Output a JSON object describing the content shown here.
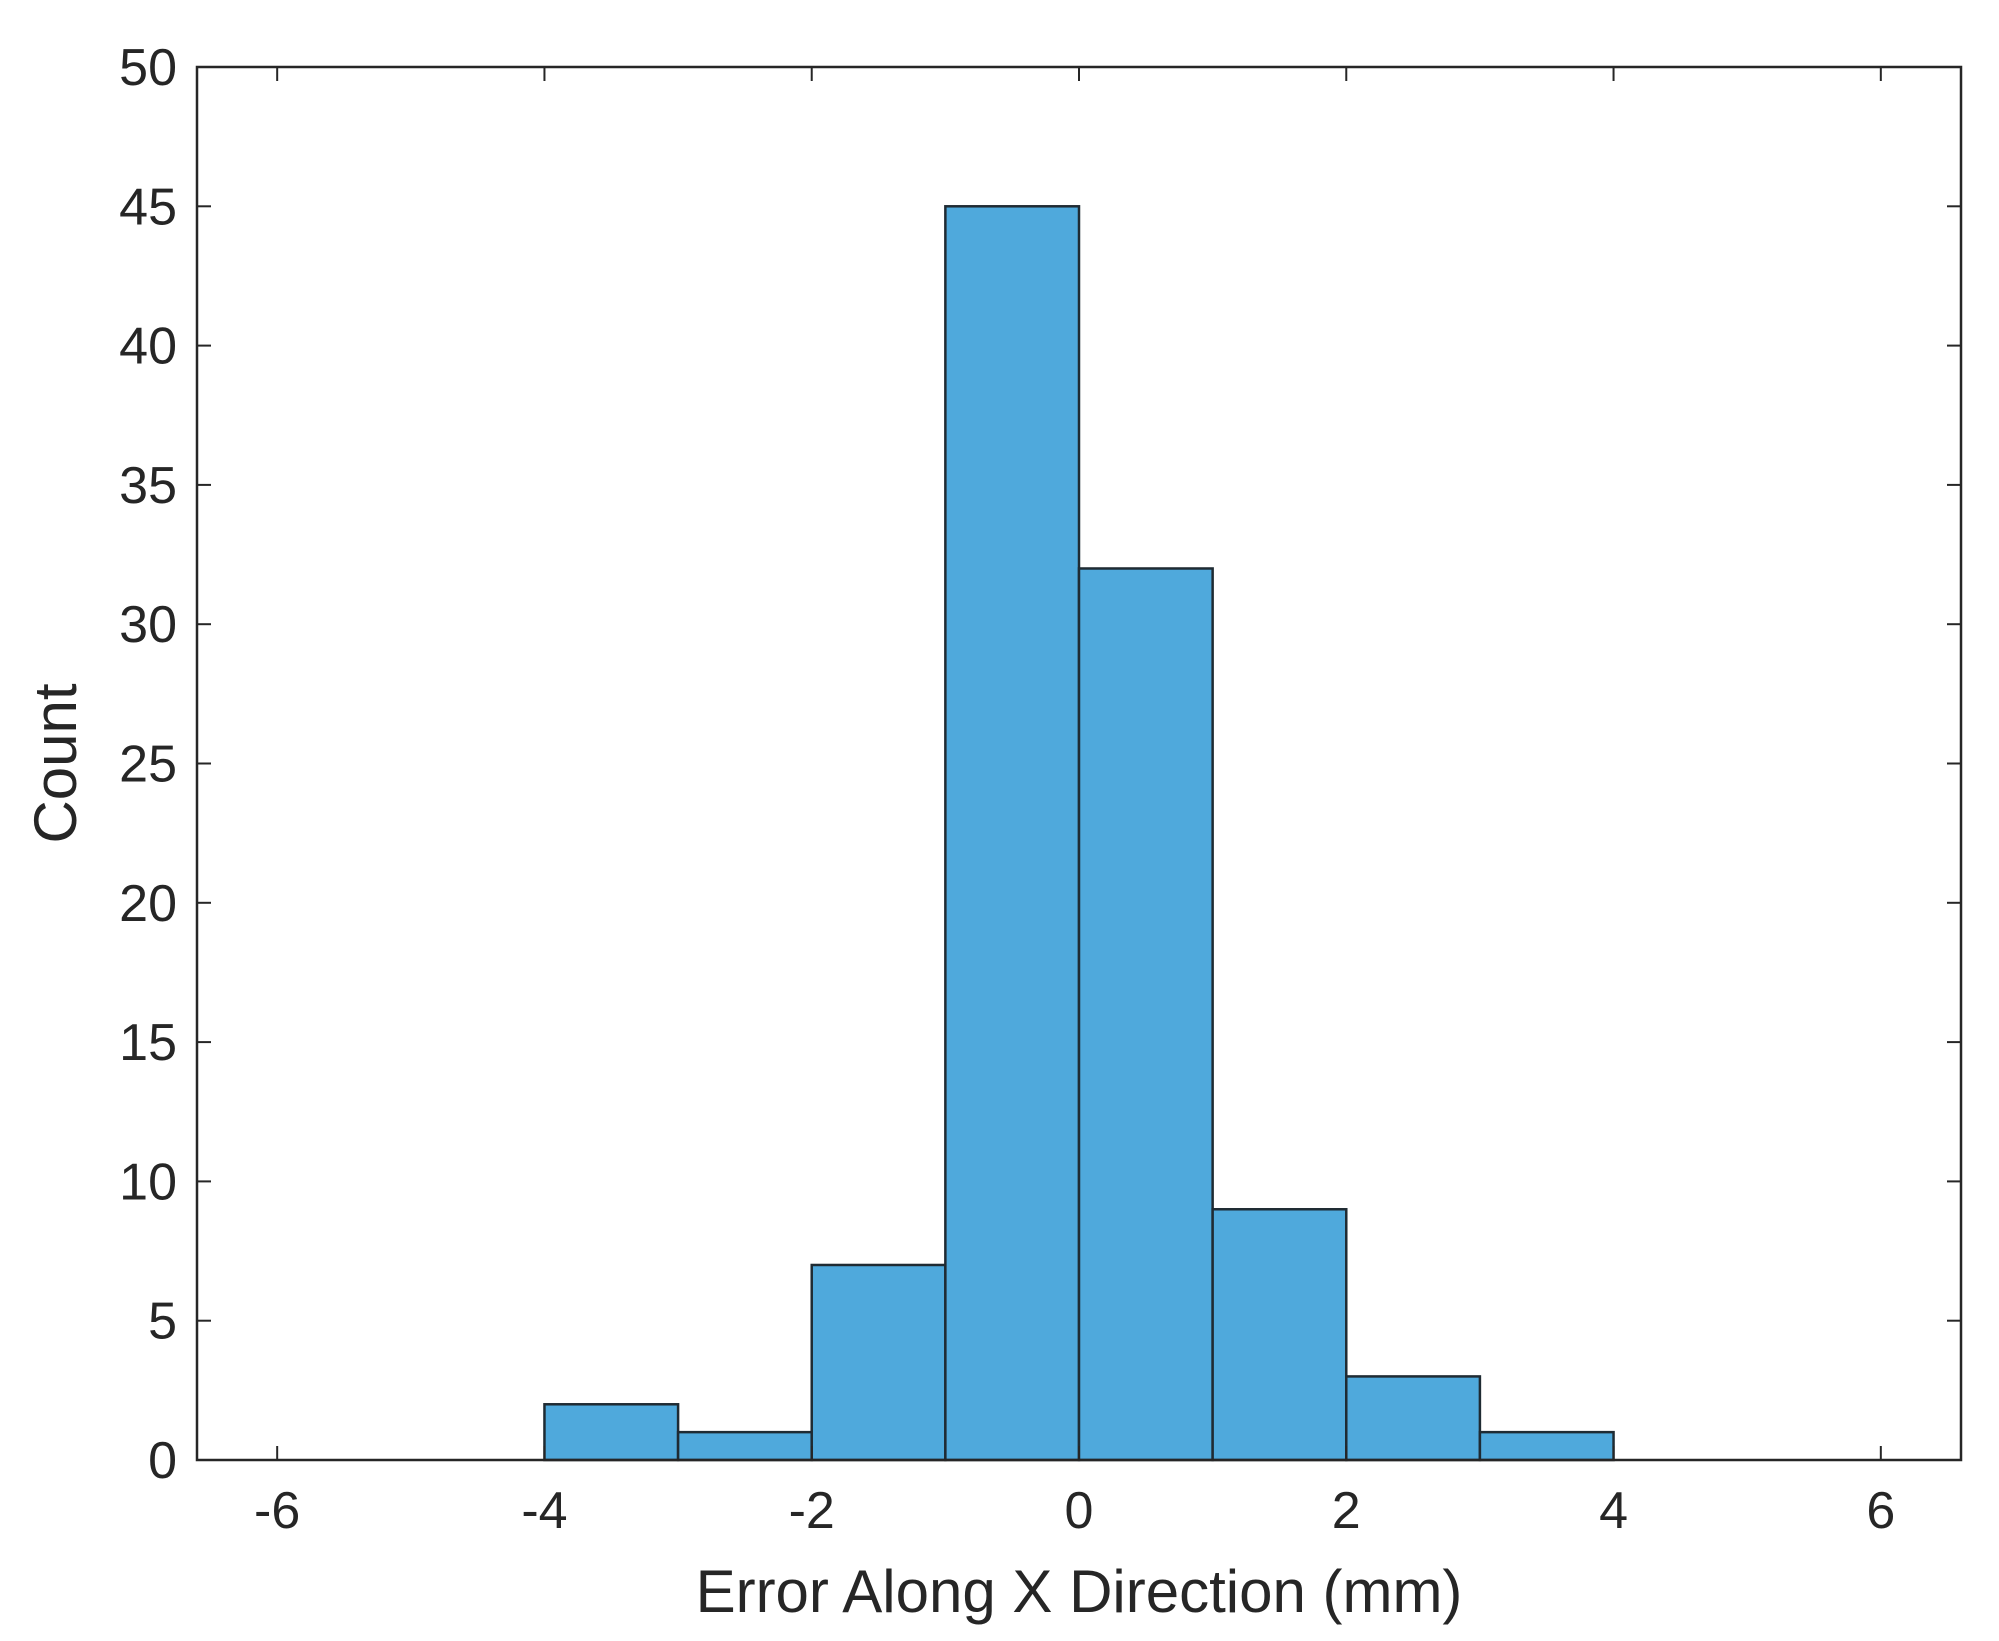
{
  "chart_data": {
    "type": "bar",
    "subtype": "histogram",
    "xlabel": "Error Along X Direction (mm)",
    "ylabel": "Count",
    "xlim": [
      -6.6,
      6.6
    ],
    "ylim": [
      0,
      50
    ],
    "xticks": [
      -6,
      -4,
      -2,
      0,
      2,
      4,
      6
    ],
    "xtick_labels": [
      "-6",
      "-4",
      "-2",
      "0",
      "2",
      "4",
      "6"
    ],
    "yticks": [
      0,
      5,
      10,
      15,
      20,
      25,
      30,
      35,
      40,
      45,
      50
    ],
    "ytick_labels": [
      "0",
      "5",
      "10",
      "15",
      "20",
      "25",
      "30",
      "35",
      "40",
      "45",
      "50"
    ],
    "grid": false,
    "bar_color": "#4fa9dc",
    "bins": [
      {
        "x0": -4,
        "x1": -3,
        "count": 2
      },
      {
        "x0": -3,
        "x1": -2,
        "count": 1
      },
      {
        "x0": -2,
        "x1": -1,
        "count": 7
      },
      {
        "x0": -1,
        "x1": 0,
        "count": 45
      },
      {
        "x0": 0,
        "x1": 1,
        "count": 32
      },
      {
        "x0": 1,
        "x1": 2,
        "count": 9
      },
      {
        "x0": 2,
        "x1": 3,
        "count": 3
      },
      {
        "x0": 3,
        "x1": 4,
        "count": 1
      }
    ]
  }
}
